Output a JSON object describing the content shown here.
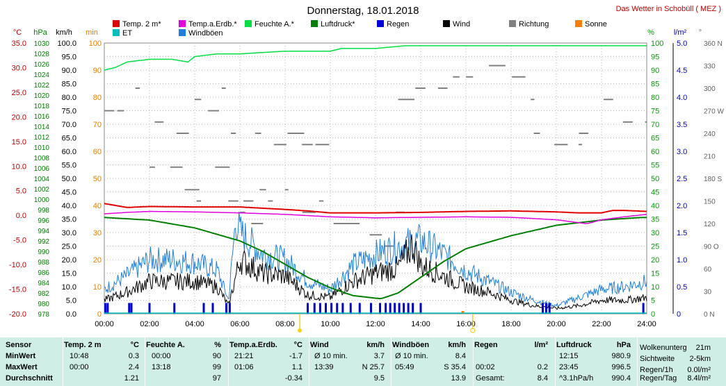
{
  "title": "Donnerstag, 18.01.2018",
  "credit": "Das Wetter in Schobüll ( MEZ )",
  "unit_labels": {
    "temp": "°C",
    "hpa": "hPa",
    "kmh": "km/h",
    "min": "min",
    "pct": "%",
    "lm2": "l/m²",
    "deg": "°"
  },
  "legend": [
    {
      "label": "Temp. 2 m*",
      "color": "#e00000"
    },
    {
      "label": "Temp.a.Erdb.*",
      "color": "#e000e0"
    },
    {
      "label": "Feuchte A.*",
      "color": "#00e040"
    },
    {
      "label": "Luftdruck*",
      "color": "#008000"
    },
    {
      "label": "Regen",
      "color": "#0000e0"
    },
    {
      "label": "Wind",
      "color": "#000000"
    },
    {
      "label": "Richtung",
      "color": "#808080"
    },
    {
      "label": "Sonne",
      "color": "#ff8000"
    },
    {
      "label": "ET",
      "color": "#00c0c0"
    },
    {
      "label": "Windböen",
      "color": "#2080e0"
    }
  ],
  "axes": {
    "temp": [
      "35.0",
      "30.0",
      "25.0",
      "20.0",
      "15.0",
      "10.0",
      "5.0",
      "0.0",
      "-5.0",
      "-10.0",
      "-15.0",
      "-20.0"
    ],
    "hpa": [
      "1030",
      "1028",
      "1026",
      "1024",
      "1022",
      "1020",
      "1018",
      "1016",
      "1014",
      "1012",
      "1010",
      "1008",
      "1006",
      "1004",
      "1002",
      "1000",
      "998",
      "996",
      "994",
      "992",
      "990",
      "988",
      "986",
      "984",
      "982",
      "980",
      "978"
    ],
    "kmh": [
      "100.0",
      "95.0",
      "90.0",
      "85.0",
      "80.0",
      "75.0",
      "70.0",
      "65.0",
      "60.0",
      "55.0",
      "50.0",
      "45.0",
      "40.0",
      "35.0",
      "30.0",
      "25.0",
      "20.0",
      "15.0",
      "10.0",
      "5.0",
      "0.0"
    ],
    "min": [
      "100",
      "90",
      "80",
      "70",
      "60",
      "50",
      "40",
      "30",
      "20",
      "10",
      "0"
    ],
    "pct": [
      "100",
      "95",
      "90",
      "85",
      "80",
      "75",
      "70",
      "65",
      "60",
      "55",
      "50",
      "45",
      "40",
      "35",
      "30",
      "25",
      "20",
      "15",
      "10",
      "5",
      "0"
    ],
    "lm2": [
      "5.0",
      "4.5",
      "4.0",
      "3.5",
      "3.0",
      "2.5",
      "2.0",
      "1.5",
      "1.0",
      "0.5",
      "0"
    ],
    "deg": [
      "360 N",
      "330",
      "300",
      "270 W",
      "240",
      "210",
      "180 S",
      "150",
      "120",
      "90 O",
      "60",
      "30",
      "0   N"
    ],
    "time": [
      "00:00",
      "02:00",
      "04:00",
      "06:00",
      "08:00",
      "10:00",
      "12:00",
      "14:00",
      "16:00",
      "18:00",
      "20:00",
      "22:00",
      "24:00"
    ]
  },
  "chart_data": {
    "type": "line",
    "title": "Donnerstag, 18.01.2018",
    "x_range": [
      "00:00",
      "24:00"
    ],
    "series": [
      {
        "name": "Temp. 2 m*",
        "unit": "°C",
        "x": [
          0,
          1,
          2,
          4,
          6,
          8,
          9,
          10,
          12,
          14,
          16,
          18,
          20,
          21,
          22,
          22.5,
          23,
          24
        ],
        "values": [
          2.4,
          1.6,
          1.8,
          1.7,
          1.7,
          1.2,
          0.9,
          0.5,
          0.5,
          0.6,
          0.8,
          0.9,
          0.7,
          0.5,
          0.5,
          1.0,
          1.0,
          0.8
        ]
      },
      {
        "name": "Temp.a.Erdb.*",
        "unit": "°C",
        "x": [
          0,
          1,
          2,
          4,
          6,
          8,
          10,
          12,
          14,
          16,
          18,
          20,
          21,
          21.35,
          22,
          23,
          24
        ],
        "values": [
          0.3,
          0.6,
          0.8,
          0.7,
          0.5,
          0.2,
          -0.3,
          -0.5,
          -0.4,
          -0.3,
          -0.4,
          -0.9,
          -1.5,
          -1.7,
          -0.9,
          -0.3,
          0.2
        ]
      },
      {
        "name": "Feuchte A.*",
        "unit": "%",
        "x": [
          0,
          0.5,
          1,
          2,
          3,
          3.7,
          4,
          5,
          6,
          8,
          10,
          10.5,
          12,
          13.3,
          14,
          16,
          18,
          20,
          22,
          24
        ],
        "values": [
          90,
          91,
          93,
          94,
          94,
          93,
          95,
          96,
          96,
          97,
          97,
          98,
          98,
          99,
          99,
          99,
          99,
          99,
          99,
          99
        ]
      },
      {
        "name": "Luftdruck*",
        "unit": "hPa",
        "x": [
          0,
          2,
          4,
          6,
          7,
          8,
          9,
          10,
          11,
          12,
          12.25,
          13,
          14,
          15,
          16,
          18,
          20,
          22,
          23.75,
          24
        ],
        "values": [
          996.5,
          996,
          994.5,
          992,
          990,
          987.5,
          985,
          983,
          981.5,
          981,
          980.9,
          982,
          985,
          988,
          990.5,
          993,
          995,
          996,
          996.5,
          996.5
        ]
      },
      {
        "name": "Wind",
        "unit": "km/h",
        "x": [
          0,
          1,
          2,
          3,
          4,
          5,
          5.5,
          6,
          7,
          8,
          9,
          10,
          11,
          12,
          13,
          13.65,
          14,
          15,
          16,
          17,
          18,
          19,
          20,
          21,
          22,
          23,
          24
        ],
        "values": [
          5,
          8,
          12,
          12,
          12,
          10,
          3,
          20,
          15,
          14,
          7,
          6,
          12,
          15,
          17,
          25.7,
          18,
          14,
          10,
          8,
          5,
          3,
          2,
          3,
          5,
          5,
          6
        ]
      },
      {
        "name": "Windböen",
        "unit": "km/h",
        "x": [
          0,
          1,
          2,
          3,
          4,
          5,
          5.5,
          5.82,
          6,
          7,
          8,
          9,
          10,
          11,
          12,
          13,
          14,
          15,
          16,
          17,
          18,
          19,
          20,
          21,
          22,
          23,
          24
        ],
        "values": [
          9,
          14,
          20,
          20,
          19,
          16,
          5,
          35.4,
          30,
          22,
          20,
          12,
          9,
          18,
          22,
          25,
          27,
          22,
          16,
          12,
          8,
          5,
          3,
          6,
          9,
          10,
          12
        ]
      },
      {
        "name": "Regen",
        "unit": "l/m²",
        "total": 8.4
      },
      {
        "name": "Richtung",
        "unit": "°"
      }
    ]
  },
  "stats": {
    "headers": {
      "sensor": "Sensor",
      "temp": "Temp. 2 m",
      "temp_u": "°C",
      "hum": "Feuchte A.",
      "hum_u": "%",
      "soil": "Temp.a.Erdb.",
      "soil_u": "°C",
      "wind": "Wind",
      "wind_u": "km/h",
      "gust": "Windböen",
      "gust_u": "km/h",
      "rain": "Regen",
      "rain_u": "l/m²",
      "press": "Luftdruck",
      "press_u": "hPa"
    },
    "rows": [
      {
        "label": "MinWert",
        "temp_t": "10:48",
        "temp_v": "0.3",
        "hum_t": "00:00",
        "hum_v": "90",
        "soil_t": "21:21",
        "soil_v": "-1.7",
        "wind_t": "Ø 10 min.",
        "wind_v": "3.7",
        "gust_t": "Ø 10 min.",
        "gust_v": "8.4",
        "rain_t": "",
        "rain_v": "",
        "press_t": "12:15",
        "press_v": "980.9",
        "ex_label": "Wolkenunterg",
        "ex_val": "21m"
      },
      {
        "label": "MaxWert",
        "temp_t": "00:00",
        "temp_v": "2.4",
        "hum_t": "13:18",
        "hum_v": "99",
        "soil_t": "01:06",
        "soil_v": "1.1",
        "wind_t": "13:39",
        "wind_v": "N 25.7",
        "gust_t": "05:49",
        "gust_v": "S 35.4",
        "rain_t": "00:02",
        "rain_v": "0.2",
        "press_t": "23:45",
        "press_v": "996.5",
        "ex_label": "Sichtweite",
        "ex_val": "2-5km"
      },
      {
        "label": "Durchschnitt",
        "temp_t": "",
        "temp_v": "1.21",
        "hum_t": "",
        "hum_v": "97",
        "soil_t": "",
        "soil_v": "-0.34",
        "wind_t": "",
        "wind_v": "9.5",
        "gust_t": "",
        "gust_v": "13.9",
        "rain_t": "Gesamt:",
        "rain_v": "8.4",
        "press_t": "^3.1hPa/h",
        "press_v": "990.4",
        "ex_label": "Regen/1h",
        "ex_val": "0.0l/m²"
      }
    ],
    "extra4_label": "Regen/Tag",
    "extra4_val": "8.4l/m²"
  }
}
